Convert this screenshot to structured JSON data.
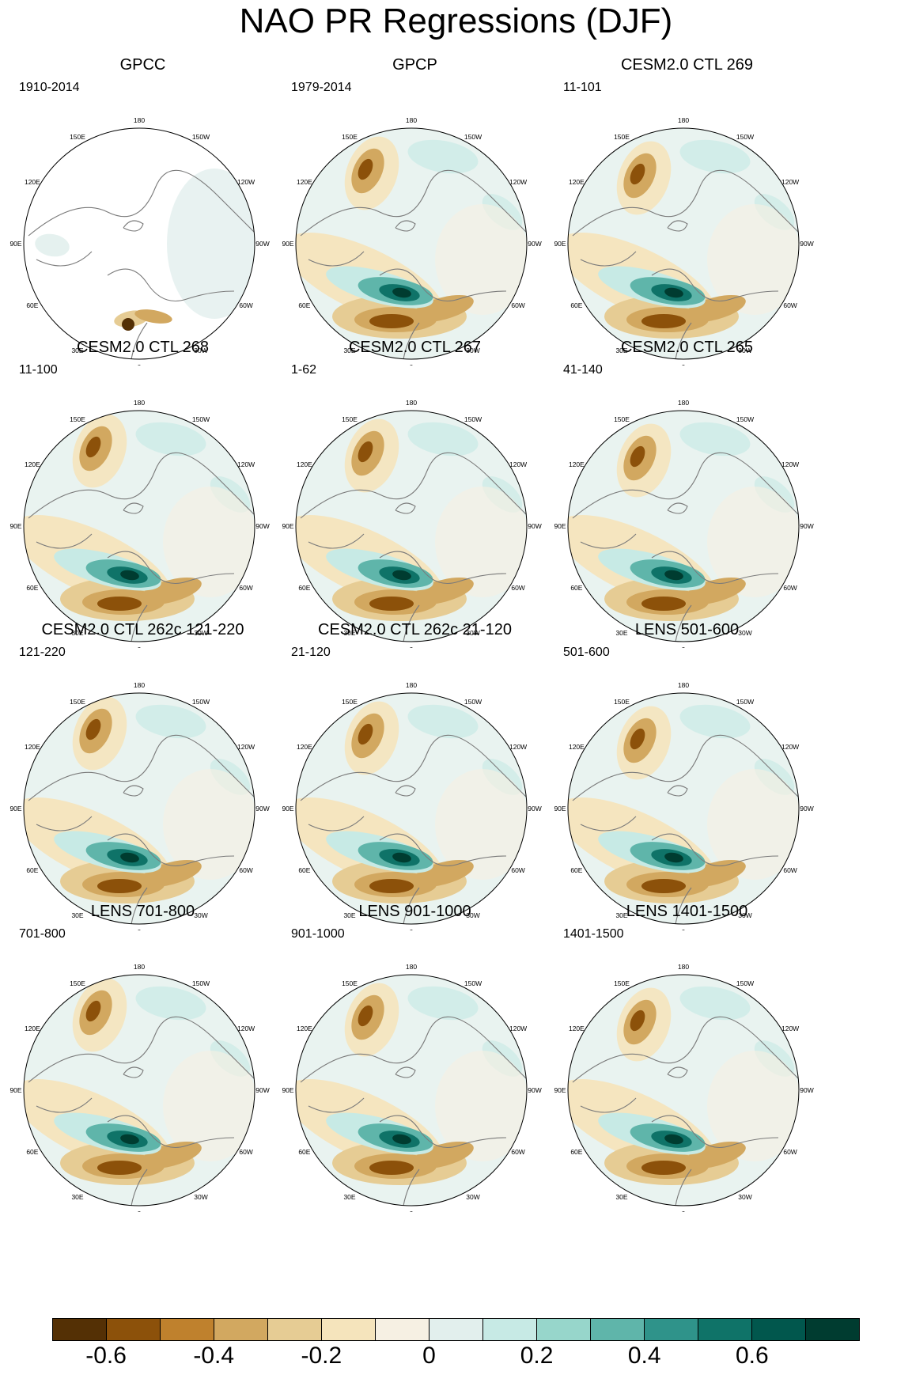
{
  "title": "NAO PR Regressions (DJF)",
  "panels": [
    {
      "title": "GPCC",
      "period": "1910-2014",
      "masked": true
    },
    {
      "title": "GPCP",
      "period": "1979-2014"
    },
    {
      "title": "CESM2.0 CTL 269",
      "period": "11-101"
    },
    {
      "title": "CESM2.0 CTL 268",
      "period": "11-100"
    },
    {
      "title": "CESM2.0 CTL 267",
      "period": "1-62"
    },
    {
      "title": "CESM2.0 CTL 265",
      "period": "41-140"
    },
    {
      "title": "CESM2.0 CTL 262c 121-220",
      "period": "121-220"
    },
    {
      "title": "CESM2.0 CTL 262c 21-120",
      "period": "21-120"
    },
    {
      "title": "LENS 501-600",
      "period": "501-600"
    },
    {
      "title": "LENS 701-800",
      "period": "701-800"
    },
    {
      "title": "LENS 901-1000",
      "period": "901-1000"
    },
    {
      "title": "LENS 1401-1500",
      "period": "1401-1500"
    }
  ],
  "longitude_labels": [
    "180",
    "150E",
    "120E",
    "90E",
    "60E",
    "30E",
    "0",
    "30W",
    "60W",
    "90W",
    "120W",
    "150W"
  ],
  "colorbar": {
    "colors": [
      "#543005",
      "#8c510a",
      "#bf812d",
      "#d2a860",
      "#e6cc94",
      "#f5e4bc",
      "#f6f0e3",
      "#e2efed",
      "#c7eae5",
      "#97d6cb",
      "#5fb5aa",
      "#2f938a",
      "#0f7368",
      "#01574d",
      "#003c30"
    ],
    "tick_labels": [
      "-0.6",
      "-0.4",
      "-0.2",
      "0",
      "0.2",
      "0.4",
      "0.6"
    ]
  }
}
